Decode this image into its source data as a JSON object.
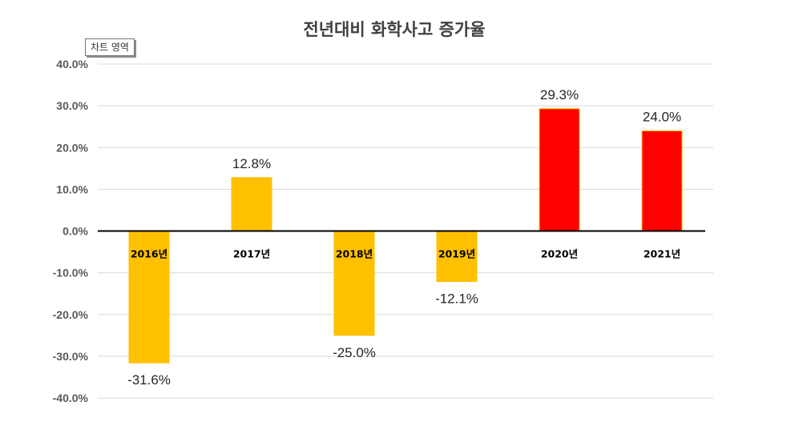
{
  "chart_data": {
    "type": "bar",
    "title": "전년대비 화학사고 증가율",
    "categories": [
      "2016년",
      "2017년",
      "2018년",
      "2019년",
      "2020년",
      "2021년"
    ],
    "values": [
      -31.6,
      12.8,
      -25.0,
      -12.1,
      29.3,
      24.0
    ],
    "data_labels": [
      "-31.6%",
      "12.8%",
      "-25.0%",
      "-12.1%",
      "29.3%",
      "24.0%"
    ],
    "bar_colors": [
      "#ffc000",
      "#ffc000",
      "#ffc000",
      "#ffc000",
      "#ff0000",
      "#ff0000"
    ],
    "ylim": [
      -40,
      40
    ],
    "yticks": [
      40,
      30,
      20,
      10,
      0,
      -10,
      -20,
      -30,
      -40
    ],
    "ytick_labels": [
      "40.0%",
      "30.0%",
      "20.0%",
      "10.0%",
      "0.0%",
      "-10.0%",
      "-20.0%",
      "-30.0%",
      "-40.0%"
    ],
    "xlabel": "",
    "ylabel": "",
    "grid": true,
    "legend": "none"
  },
  "tooltip": {
    "text": "차트 영역"
  }
}
